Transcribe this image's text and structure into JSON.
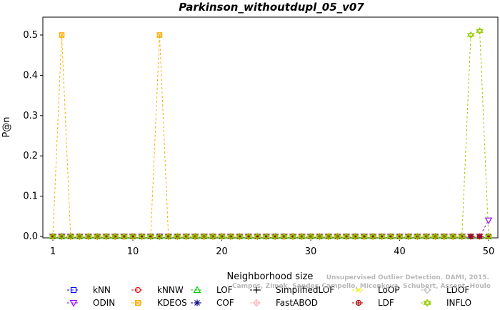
{
  "chart_data": {
    "type": "line",
    "title": "Parkinson_withoutdupl_05_v07",
    "xlabel": "Neighborhood size",
    "ylabel": "P@n",
    "xlim": [
      1,
      50
    ],
    "ylim": [
      0,
      0.5
    ],
    "x_ticks": [
      1,
      10,
      20,
      30,
      40,
      50
    ],
    "y_ticks": [
      0.0,
      0.1,
      0.2,
      0.3,
      0.4,
      0.5
    ],
    "x": [
      1,
      2,
      3,
      4,
      5,
      6,
      7,
      8,
      9,
      10,
      11,
      12,
      13,
      14,
      15,
      16,
      17,
      18,
      19,
      20,
      21,
      22,
      23,
      24,
      25,
      26,
      27,
      28,
      29,
      30,
      31,
      32,
      33,
      34,
      35,
      36,
      37,
      38,
      39,
      40,
      41,
      42,
      43,
      44,
      45,
      46,
      47,
      48,
      49,
      50
    ],
    "legend_position": "bottom",
    "series": [
      {
        "name": "kNN",
        "color": "#0000ff",
        "dash": "3,3",
        "marker": "square",
        "values": [
          0,
          0,
          0,
          0,
          0,
          0,
          0,
          0,
          0,
          0,
          0,
          0,
          0,
          0,
          0,
          0,
          0,
          0,
          0,
          0,
          0,
          0,
          0,
          0,
          0,
          0,
          0,
          0,
          0,
          0,
          0,
          0,
          0,
          0,
          0,
          0,
          0,
          0,
          0,
          0,
          0,
          0,
          0,
          0,
          0,
          0,
          0,
          0,
          0,
          0
        ]
      },
      {
        "name": "kNNW",
        "color": "#ff0000",
        "dash": "3,3",
        "marker": "circle",
        "values": [
          0,
          0,
          0,
          0,
          0,
          0,
          0,
          0,
          0,
          0,
          0,
          0,
          0,
          0,
          0,
          0,
          0,
          0,
          0,
          0,
          0,
          0,
          0,
          0,
          0,
          0,
          0,
          0,
          0,
          0,
          0,
          0,
          0,
          0,
          0,
          0,
          0,
          0,
          0,
          0,
          0,
          0,
          0,
          0,
          0,
          0,
          0,
          0,
          0,
          0
        ]
      },
      {
        "name": "LOF",
        "color": "#00cc00",
        "dash": "3,3",
        "marker": "triangle",
        "values": [
          0,
          0,
          0,
          0,
          0,
          0,
          0,
          0,
          0,
          0,
          0,
          0,
          0,
          0,
          0,
          0,
          0,
          0,
          0,
          0,
          0,
          0,
          0,
          0,
          0,
          0,
          0,
          0,
          0,
          0,
          0,
          0,
          0,
          0,
          0,
          0,
          0,
          0,
          0,
          0,
          0,
          0,
          0,
          0,
          0,
          0,
          0,
          0,
          0,
          0
        ]
      },
      {
        "name": "SimplifiedLOF",
        "color": "#000000",
        "dash": "3,3",
        "marker": "plus",
        "values": [
          0,
          0,
          0,
          0,
          0,
          0,
          0,
          0,
          0,
          0,
          0,
          0,
          0,
          0,
          0,
          0,
          0,
          0,
          0,
          0,
          0,
          0,
          0,
          0,
          0,
          0,
          0,
          0,
          0,
          0,
          0,
          0,
          0,
          0,
          0,
          0,
          0,
          0,
          0,
          0,
          0,
          0,
          0,
          0,
          0,
          0,
          0,
          0,
          0,
          0
        ]
      },
      {
        "name": "LoOP",
        "color": "#eeee00",
        "dash": "3,3",
        "marker": "x",
        "values": [
          0,
          0,
          0,
          0,
          0,
          0,
          0,
          0,
          0,
          0,
          0,
          0,
          0,
          0,
          0,
          0,
          0,
          0,
          0,
          0,
          0,
          0,
          0,
          0,
          0,
          0,
          0,
          0,
          0,
          0,
          0,
          0,
          0,
          0,
          0,
          0,
          0,
          0,
          0,
          0,
          0,
          0,
          0,
          0,
          0,
          0,
          0,
          0,
          0,
          0
        ]
      },
      {
        "name": "LDOF",
        "color": "#bbbbbb",
        "dash": "3,3",
        "marker": "diamond",
        "values": [
          0,
          0,
          0,
          0,
          0,
          0,
          0,
          0,
          0,
          0,
          0,
          0,
          0,
          0,
          0,
          0,
          0,
          0,
          0,
          0,
          0,
          0,
          0,
          0,
          0,
          0,
          0,
          0,
          0,
          0,
          0,
          0,
          0,
          0,
          0,
          0,
          0,
          0,
          0,
          0,
          0,
          0,
          0,
          0,
          0,
          0,
          0,
          0,
          0,
          0
        ]
      },
      {
        "name": "ODIN",
        "color": "#9900ff",
        "dash": "3,3",
        "marker": "triangle-down",
        "values": [
          0,
          0,
          0,
          0,
          0,
          0,
          0,
          0,
          0,
          0,
          0,
          0,
          0,
          0,
          0,
          0,
          0,
          0,
          0,
          0,
          0,
          0,
          0,
          0,
          0,
          0,
          0,
          0,
          0,
          0,
          0,
          0,
          0,
          0,
          0,
          0,
          0,
          0,
          0,
          0,
          0,
          0,
          0,
          0,
          0,
          0,
          0,
          0,
          0,
          0.04
        ]
      },
      {
        "name": "KDEOS",
        "color": "#ffaa00",
        "dash": "3,3",
        "marker": "square-x",
        "values": [
          0,
          0.5,
          0,
          0,
          0,
          0,
          0,
          0,
          0,
          0,
          0,
          0,
          0.5,
          0,
          0,
          0,
          0,
          0,
          0,
          0,
          0,
          0,
          0,
          0,
          0,
          0,
          0,
          0,
          0,
          0,
          0,
          0,
          0,
          0,
          0,
          0,
          0,
          0,
          0,
          0,
          0,
          0,
          0,
          0,
          0,
          0,
          0,
          0,
          0,
          0
        ]
      },
      {
        "name": "COF",
        "color": "#000080",
        "dash": "3,3",
        "marker": "star",
        "values": [
          0,
          0,
          0,
          0,
          0,
          0,
          0,
          0,
          0,
          0,
          0,
          0,
          0,
          0,
          0,
          0,
          0,
          0,
          0,
          0,
          0,
          0,
          0,
          0,
          0,
          0,
          0,
          0,
          0,
          0,
          0,
          0,
          0,
          0,
          0,
          0,
          0,
          0,
          0,
          0,
          0,
          0,
          0,
          0,
          0,
          0,
          0,
          0,
          0,
          0
        ]
      },
      {
        "name": "FastABOD",
        "color": "#ffb6c1",
        "dash": "3,3",
        "marker": "diamond-plus",
        "values": [
          0,
          0,
          0,
          0,
          0,
          0,
          0,
          0,
          0,
          0,
          0,
          0,
          0,
          0,
          0,
          0,
          0,
          0,
          0,
          0,
          0,
          0,
          0,
          0,
          0,
          0,
          0,
          0,
          0,
          0,
          0,
          0,
          0,
          0,
          0,
          0,
          0,
          0,
          0,
          0,
          0,
          0,
          0,
          0,
          0,
          0,
          0,
          0,
          0,
          0
        ]
      },
      {
        "name": "LDF",
        "color": "#aa0000",
        "dash": "3,3",
        "marker": "circle-plus",
        "values": [
          0,
          0,
          0,
          0,
          0,
          0,
          0,
          0,
          0,
          0,
          0,
          0,
          0,
          0,
          0,
          0,
          0,
          0,
          0,
          0,
          0,
          0,
          0,
          0,
          0,
          0,
          0,
          0,
          0,
          0,
          0,
          0,
          0,
          0,
          0,
          0,
          0,
          0,
          0,
          0,
          0,
          0,
          0,
          0,
          0,
          0,
          0,
          0,
          0,
          0
        ]
      },
      {
        "name": "INFLO",
        "color": "#99cc00",
        "dash": "3,3",
        "marker": "hexagram",
        "values": [
          0,
          0,
          0,
          0,
          0,
          0,
          0,
          0,
          0,
          0,
          0,
          0,
          0,
          0,
          0,
          0,
          0,
          0,
          0,
          0,
          0,
          0,
          0,
          0,
          0,
          0,
          0,
          0,
          0,
          0,
          0,
          0,
          0,
          0,
          0,
          0,
          0,
          0,
          0,
          0,
          0,
          0,
          0,
          0,
          0,
          0,
          0,
          0.5,
          0.51,
          0
        ]
      }
    ]
  },
  "watermark": {
    "line1": "Unsupervised Outlier Detection. DAMI, 2015.",
    "line2": "Campos, Zimek, Sander, Campello, Micenkova, Schubert, Assent, Houle"
  }
}
